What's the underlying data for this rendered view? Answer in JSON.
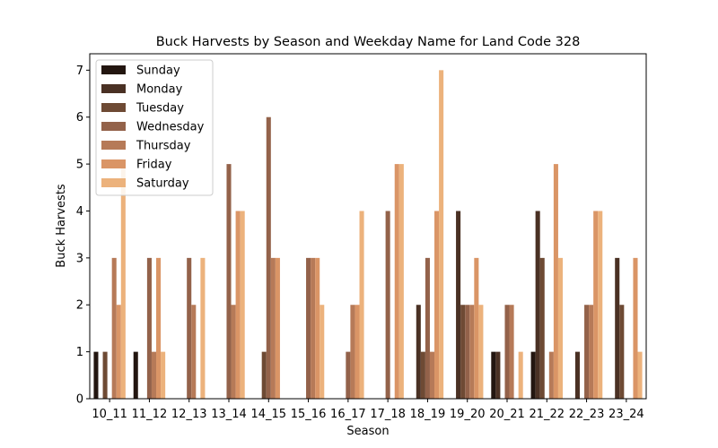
{
  "chart_data": {
    "type": "bar",
    "title": "Buck Harvests by Season and Weekday Name for Land Code 328",
    "xlabel": "Season",
    "ylabel": "Buck Harvests",
    "ylim": [
      0,
      7.35
    ],
    "yticks": [
      0,
      1,
      2,
      3,
      4,
      5,
      6,
      7
    ],
    "grid": false,
    "legend_position": "top-left",
    "categories": [
      "10_11",
      "11_12",
      "12_13",
      "13_14",
      "14_15",
      "15_16",
      "16_17",
      "17_18",
      "18_19",
      "19_20",
      "20_21",
      "21_22",
      "22_23",
      "23_24"
    ],
    "series": [
      {
        "name": "Sunday",
        "color": "#231610",
        "values": [
          1,
          1,
          0,
          0,
          0,
          0,
          0,
          0,
          0,
          0,
          1,
          1,
          0,
          0
        ]
      },
      {
        "name": "Monday",
        "color": "#4a3124",
        "values": [
          0,
          0,
          0,
          0,
          0,
          0,
          0,
          0,
          2,
          4,
          1,
          4,
          1,
          3
        ]
      },
      {
        "name": "Tuesday",
        "color": "#6e4a34",
        "values": [
          1,
          0,
          0,
          0,
          1,
          0,
          0,
          0,
          1,
          2,
          0,
          3,
          0,
          2
        ]
      },
      {
        "name": "Wednesday",
        "color": "#93624a",
        "values": [
          0,
          3,
          3,
          5,
          6,
          3,
          1,
          4,
          3,
          2,
          2,
          0,
          2,
          0
        ]
      },
      {
        "name": "Thursday",
        "color": "#b67a58",
        "values": [
          3,
          1,
          2,
          2,
          3,
          3,
          2,
          0,
          1,
          2,
          2,
          1,
          2,
          0
        ]
      },
      {
        "name": "Friday",
        "color": "#da9566",
        "values": [
          2,
          3,
          0,
          4,
          3,
          3,
          2,
          5,
          4,
          3,
          0,
          5,
          4,
          3
        ]
      },
      {
        "name": "Saturday",
        "color": "#ecb27c",
        "values": [
          5,
          1,
          3,
          4,
          0,
          2,
          4,
          5,
          7,
          2,
          1,
          3,
          4,
          1
        ]
      }
    ]
  }
}
